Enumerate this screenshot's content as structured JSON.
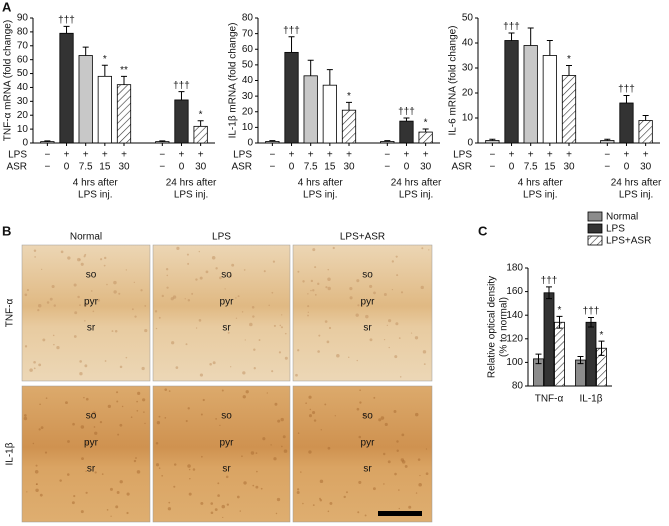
{
  "panel_labels": [
    "A",
    "B",
    "C"
  ],
  "micrographs": {
    "columns": [
      "Normal",
      "LPS",
      "LPS+ASR"
    ],
    "rows": [
      "TNF-α",
      "IL-1β"
    ],
    "layers": [
      "so",
      "pyr",
      "sr"
    ]
  },
  "chart_data": [
    {
      "type": "bar",
      "ylabel": "TNF-α mRNA (fold change)",
      "ylim": [
        0,
        90
      ],
      "yticks": [
        0,
        10,
        20,
        30,
        40,
        50,
        60,
        70,
        80,
        90
      ],
      "row_labels": [
        "LPS",
        "ASR"
      ],
      "groups": [
        {
          "label": [
            "4 hrs after",
            "LPS inj."
          ],
          "lps": [
            "−",
            "+",
            "+",
            "+",
            "+"
          ],
          "asr": [
            "−",
            "0",
            "7.5",
            "15",
            "30"
          ],
          "values": [
            1,
            79,
            63,
            48,
            42
          ],
          "errors": [
            0.5,
            5,
            6,
            8,
            6
          ],
          "fills": [
            "#c8c8c8",
            "#333333",
            "#c8c8c8",
            "#ffffff",
            "hatch"
          ],
          "annotations": [
            null,
            "†††",
            null,
            "*",
            "**"
          ]
        },
        {
          "label": [
            "24 hrs after",
            "LPS inj."
          ],
          "lps": [
            "−",
            "+",
            "+"
          ],
          "asr": [
            "−",
            "0",
            "30"
          ],
          "values": [
            1,
            31,
            12
          ],
          "errors": [
            0.5,
            6,
            4
          ],
          "fills": [
            "#c8c8c8",
            "#333333",
            "hatch"
          ],
          "annotations": [
            null,
            "†††",
            "*"
          ]
        }
      ]
    },
    {
      "type": "bar",
      "ylabel": "IL-1β mRNA (fold change)",
      "ylim": [
        0,
        80
      ],
      "yticks": [
        0,
        10,
        20,
        30,
        40,
        50,
        60,
        70,
        80
      ],
      "row_labels": [
        "LPS",
        "ASR"
      ],
      "groups": [
        {
          "label": [
            "4 hrs after",
            "LPS inj."
          ],
          "lps": [
            "−",
            "+",
            "+",
            "+",
            "+"
          ],
          "asr": [
            "−",
            "0",
            "7.5",
            "15",
            "30"
          ],
          "values": [
            1,
            58,
            43,
            37,
            21
          ],
          "errors": [
            0.5,
            10,
            10,
            10,
            5
          ],
          "fills": [
            "#c8c8c8",
            "#333333",
            "#c8c8c8",
            "#ffffff",
            "hatch"
          ],
          "annotations": [
            null,
            "†††",
            null,
            null,
            "*"
          ]
        },
        {
          "label": [
            "24 hrs after",
            "LPS inj."
          ],
          "lps": [
            "−",
            "+",
            "+"
          ],
          "asr": [
            "−",
            "0",
            "30"
          ],
          "values": [
            1,
            14,
            7
          ],
          "errors": [
            0.5,
            2,
            2
          ],
          "fills": [
            "#c8c8c8",
            "#333333",
            "hatch"
          ],
          "annotations": [
            null,
            "†††",
            "*"
          ]
        }
      ]
    },
    {
      "type": "bar",
      "ylabel": "IL-6 mRNA (fold change)",
      "ylim": [
        0,
        50
      ],
      "yticks": [
        0,
        10,
        20,
        30,
        40,
        50
      ],
      "row_labels": [
        "LPS",
        "ASR"
      ],
      "groups": [
        {
          "label": [
            "4 hrs after",
            "LPS inj."
          ],
          "lps": [
            "−",
            "+",
            "+",
            "+",
            "+"
          ],
          "asr": [
            "−",
            "0",
            "7.5",
            "15",
            "30"
          ],
          "values": [
            1,
            41,
            39,
            35,
            27
          ],
          "errors": [
            0.5,
            3,
            7,
            6,
            4
          ],
          "fills": [
            "#c8c8c8",
            "#333333",
            "#c8c8c8",
            "#ffffff",
            "hatch"
          ],
          "annotations": [
            null,
            "†††",
            null,
            null,
            "*"
          ]
        },
        {
          "label": [
            "24 hrs after",
            "LPS inj."
          ],
          "lps": [
            "−",
            "+",
            "+"
          ],
          "asr": [
            "−",
            "0",
            "30"
          ],
          "values": [
            1,
            16,
            9
          ],
          "errors": [
            0.5,
            3,
            2
          ],
          "fills": [
            "#c8c8c8",
            "#333333",
            "hatch"
          ],
          "annotations": [
            null,
            "†††",
            null
          ]
        }
      ]
    },
    {
      "type": "grouped_bar",
      "ylabel": [
        "Relative optical density",
        "(% to normal)"
      ],
      "ylim": [
        80,
        180
      ],
      "yticks": [
        80,
        100,
        120,
        140,
        160,
        180
      ],
      "categories": [
        "TNF-α",
        "IL-1β"
      ],
      "series": [
        {
          "name": "Normal",
          "color": "#8c8c8c",
          "values": [
            103,
            102
          ],
          "errors": [
            4,
            3
          ],
          "annotations": [
            null,
            null
          ]
        },
        {
          "name": "LPS",
          "color": "#333333",
          "values": [
            159,
            134
          ],
          "errors": [
            5,
            4
          ],
          "annotations": [
            "†††",
            "†††"
          ]
        },
        {
          "name": "LPS+ASR",
          "color": "hatch",
          "values": [
            134,
            112
          ],
          "errors": [
            5,
            6
          ],
          "annotations": [
            "*",
            "*"
          ]
        }
      ]
    }
  ]
}
